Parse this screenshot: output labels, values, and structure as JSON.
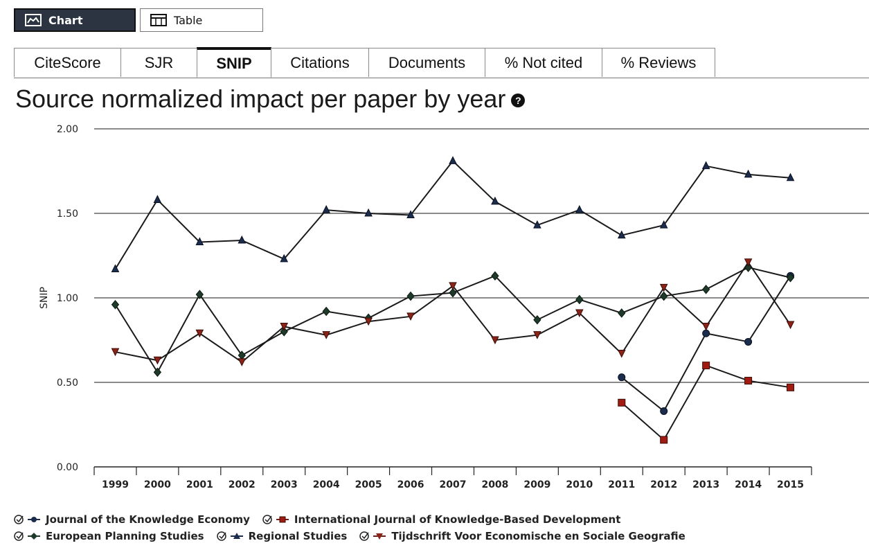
{
  "view_toggle": {
    "chart_label": "Chart",
    "table_label": "Table"
  },
  "tabs": [
    {
      "label": "CiteScore",
      "active": false
    },
    {
      "label": "SJR",
      "active": false
    },
    {
      "label": "SNIP",
      "active": true
    },
    {
      "label": "Citations",
      "active": false
    },
    {
      "label": "Documents",
      "active": false
    },
    {
      "label": "% Not cited",
      "active": false
    },
    {
      "label": "% Reviews",
      "active": false
    }
  ],
  "page": {
    "title": "Source normalized impact per paper by year",
    "help_icon": "question-circle-icon"
  },
  "chart_data": {
    "type": "line",
    "title": "",
    "xlabel": "",
    "ylabel": "SNIP",
    "ylim": [
      0,
      2
    ],
    "y_ticks": [
      "0.00",
      "0.50",
      "1.00",
      "1.50",
      "2.00"
    ],
    "grid": "horizontal",
    "legend_position": "bottom",
    "x": [
      "1999",
      "2000",
      "2001",
      "2002",
      "2003",
      "2004",
      "2005",
      "2006",
      "2007",
      "2008",
      "2009",
      "2010",
      "2011",
      "2012",
      "2013",
      "2014",
      "2015"
    ],
    "series": [
      {
        "name": "Journal of the Knowledge Economy",
        "marker": "circle",
        "color": "#1c2c4c",
        "values": [
          null,
          null,
          null,
          null,
          null,
          null,
          null,
          null,
          null,
          null,
          null,
          null,
          0.53,
          0.33,
          0.79,
          0.74,
          1.13
        ]
      },
      {
        "name": "International Journal of Knowledge-Based Development",
        "marker": "square",
        "color": "#7a1a12",
        "values": [
          null,
          null,
          null,
          null,
          null,
          null,
          null,
          null,
          null,
          null,
          null,
          null,
          0.38,
          0.16,
          0.6,
          0.51,
          0.47
        ]
      },
      {
        "name": "European Planning Studies",
        "marker": "diamond",
        "color": "#1f3a2a",
        "values": [
          0.96,
          0.56,
          1.02,
          0.66,
          0.8,
          0.92,
          0.88,
          1.01,
          1.03,
          1.13,
          0.87,
          0.99,
          0.91,
          1.01,
          1.05,
          1.18,
          1.12
        ]
      },
      {
        "name": "Regional Studies",
        "marker": "triangle-up",
        "color": "#1c2c4c",
        "values": [
          1.17,
          1.58,
          1.33,
          1.34,
          1.23,
          1.52,
          1.5,
          1.49,
          1.81,
          1.57,
          1.43,
          1.52,
          1.37,
          1.43,
          1.78,
          1.73,
          1.71
        ]
      },
      {
        "name": "Tijdschrift Voor Economische en Sociale Geografie",
        "marker": "triangle-down",
        "color": "#6a1f14",
        "values": [
          0.68,
          0.63,
          0.79,
          0.62,
          0.83,
          0.78,
          0.86,
          0.89,
          1.07,
          0.75,
          0.78,
          0.91,
          0.67,
          1.06,
          0.83,
          1.21,
          0.84
        ]
      }
    ]
  },
  "colors": {
    "line": "#1a1a1a",
    "tab_active_border": "#111111",
    "toggle_active_bg": "#2b3440"
  }
}
